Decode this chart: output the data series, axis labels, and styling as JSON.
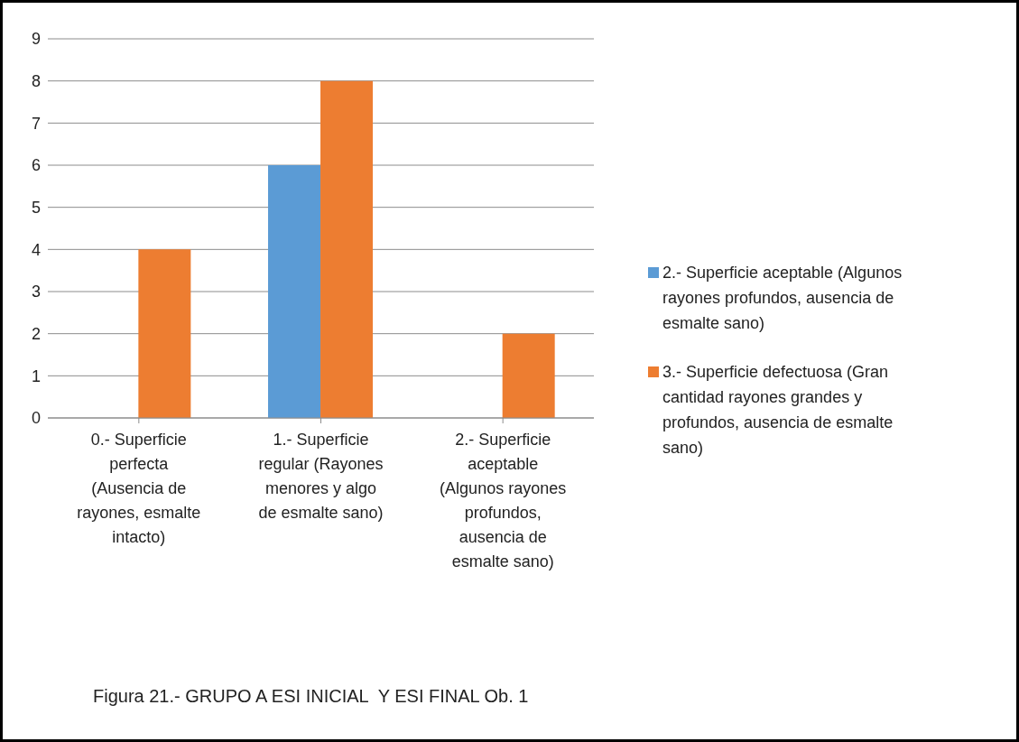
{
  "chart_data": {
    "type": "bar",
    "categories": [
      "0.- Superficie perfecta (Ausencia de rayones, esmalte intacto)",
      "1.- Superficie regular (Rayones menores y algo de esmalte sano)",
      "2.- Superficie aceptable (Algunos rayones profundos, ausencia de esmalte sano)"
    ],
    "series": [
      {
        "name": "2.- Superficie aceptable (Algunos rayones profundos, ausencia de esmalte sano)",
        "color": "#5b9bd5",
        "values": [
          0,
          6,
          0
        ]
      },
      {
        "name": "3.- Superficie defectuosa (Gran cantidad rayones grandes y profundos, ausencia de esmalte sano)",
        "color": "#ed7d31",
        "values": [
          4,
          8,
          2
        ]
      }
    ],
    "ylim": [
      0,
      9
    ],
    "yticks": [
      0,
      1,
      2,
      3,
      4,
      5,
      6,
      7,
      8,
      9
    ],
    "grid": "y",
    "legend": "right",
    "annotations": [
      "Figura 21.- GRUPO A ESI INICIAL  Y ESI FINAL Ob. 1"
    ]
  }
}
